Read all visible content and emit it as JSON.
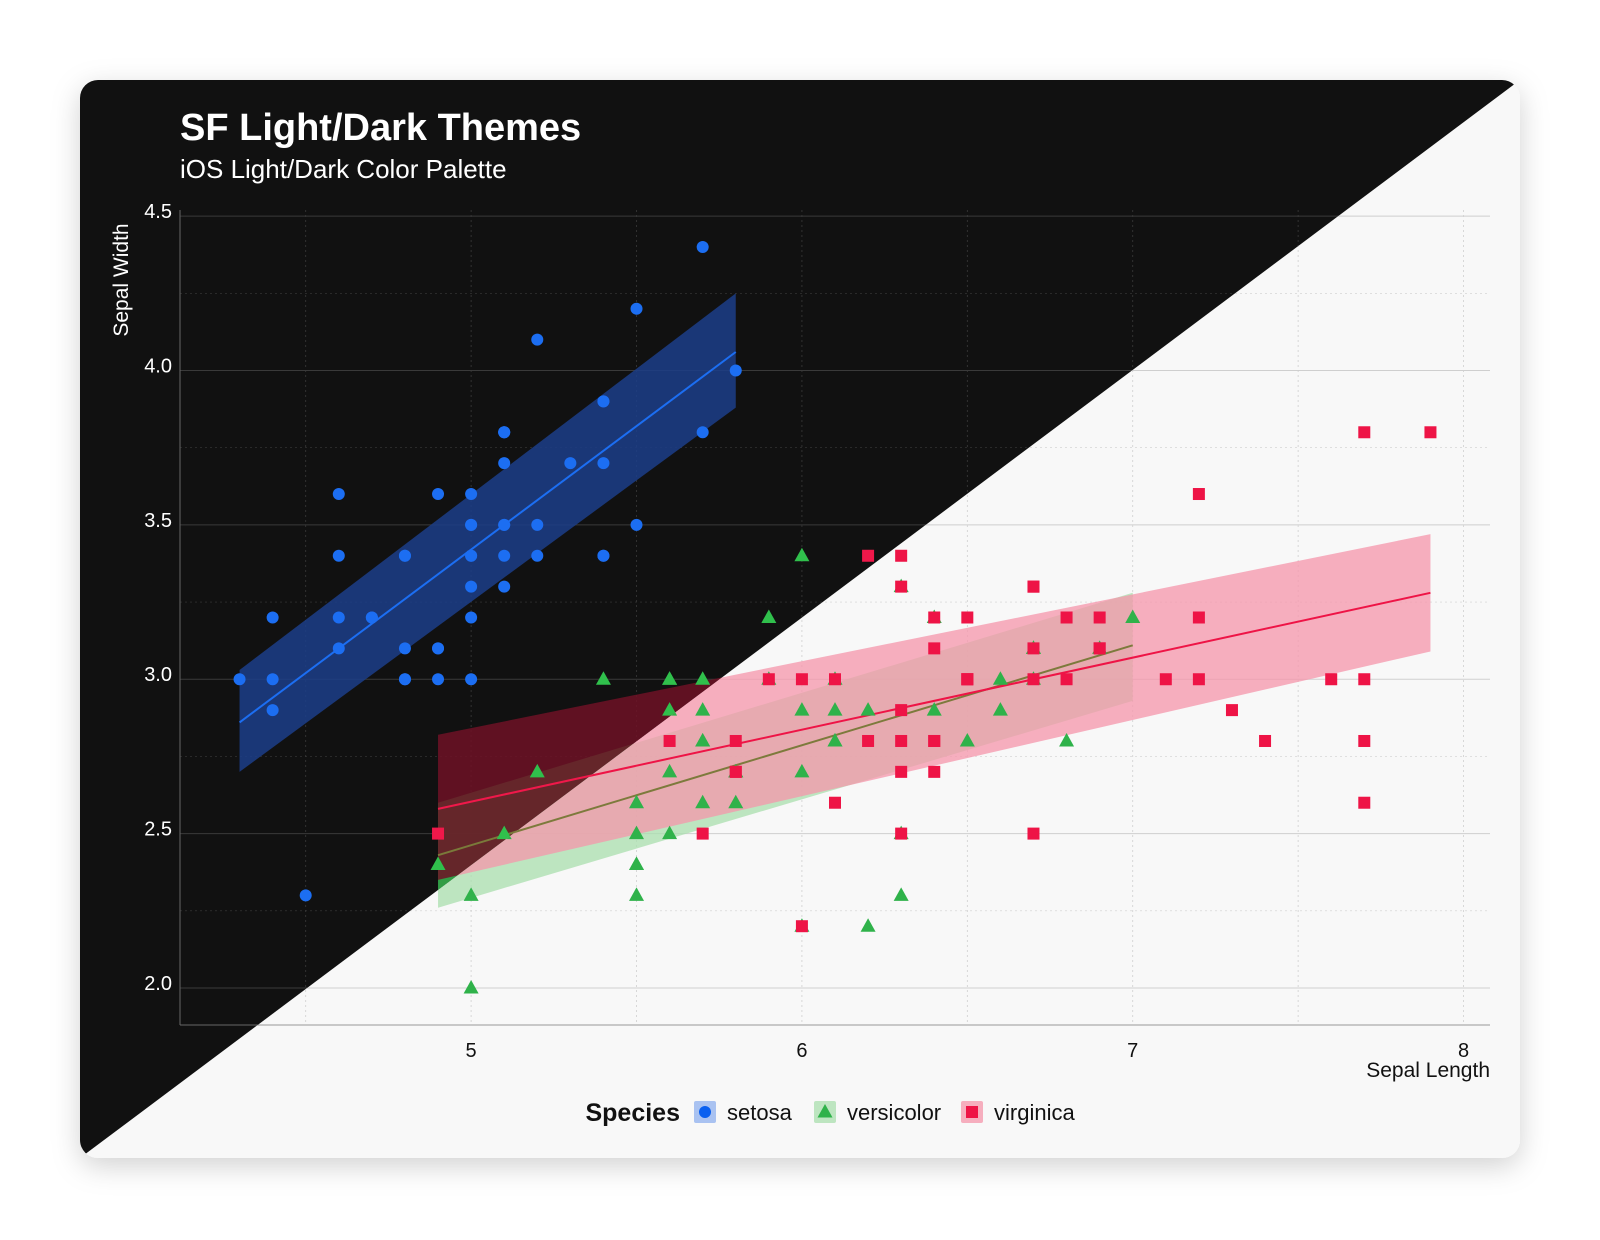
{
  "chart_data": {
    "type": "scatter",
    "title": "SF Light/Dark Themes",
    "subtitle": "iOS Light/Dark Color Palette",
    "xlabel": "Sepal Length",
    "ylabel": "Sepal Width",
    "xlim": [
      4.12,
      8.08
    ],
    "ylim": [
      1.88,
      4.52
    ],
    "x_ticks": [
      5,
      6,
      7,
      8
    ],
    "x_tick_labels": [
      "5",
      "6",
      "7",
      "8"
    ],
    "y_ticks": [
      2.0,
      2.5,
      3.0,
      3.5,
      4.0,
      4.5
    ],
    "y_tick_labels": [
      "2.0",
      "2.5",
      "3.0",
      "3.5",
      "4.0",
      "4.5"
    ],
    "grid": true,
    "legend": {
      "title": "Species",
      "position": "bottom"
    },
    "series": [
      {
        "name": "setosa",
        "marker": "circle",
        "color": "#1c6ef2",
        "color_light": "#0a60f0",
        "band_color": "#1c3e8a",
        "band_color_light": "#8fb0ef",
        "fit": {
          "x_start": 4.3,
          "x_end": 5.8,
          "y_start": 2.86,
          "y_end": 4.06,
          "band_start": [
            2.7,
            3.03
          ],
          "band_end": [
            3.88,
            4.25
          ]
        },
        "points": [
          [
            5.1,
            3.5
          ],
          [
            4.9,
            3.0
          ],
          [
            4.7,
            3.2
          ],
          [
            4.6,
            3.1
          ],
          [
            5.0,
            3.6
          ],
          [
            5.4,
            3.9
          ],
          [
            4.6,
            3.4
          ],
          [
            5.0,
            3.4
          ],
          [
            4.4,
            2.9
          ],
          [
            4.9,
            3.1
          ],
          [
            5.4,
            3.7
          ],
          [
            4.8,
            3.4
          ],
          [
            4.8,
            3.0
          ],
          [
            4.3,
            3.0
          ],
          [
            5.8,
            4.0
          ],
          [
            5.7,
            4.4
          ],
          [
            5.4,
            3.9
          ],
          [
            5.1,
            3.5
          ],
          [
            5.7,
            3.8
          ],
          [
            5.1,
            3.8
          ],
          [
            5.4,
            3.4
          ],
          [
            5.1,
            3.7
          ],
          [
            4.6,
            3.6
          ],
          [
            5.1,
            3.3
          ],
          [
            4.8,
            3.4
          ],
          [
            5.0,
            3.0
          ],
          [
            5.0,
            3.4
          ],
          [
            5.2,
            3.5
          ],
          [
            5.2,
            3.4
          ],
          [
            4.7,
            3.2
          ],
          [
            4.8,
            3.1
          ],
          [
            5.4,
            3.4
          ],
          [
            5.2,
            4.1
          ],
          [
            5.5,
            4.2
          ],
          [
            4.9,
            3.1
          ],
          [
            5.0,
            3.2
          ],
          [
            5.5,
            3.5
          ],
          [
            4.9,
            3.6
          ],
          [
            4.4,
            3.0
          ],
          [
            5.1,
            3.4
          ],
          [
            5.0,
            3.5
          ],
          [
            4.5,
            2.3
          ],
          [
            4.4,
            3.2
          ],
          [
            5.0,
            3.5
          ],
          [
            5.1,
            3.8
          ],
          [
            4.8,
            3.0
          ],
          [
            5.1,
            3.8
          ],
          [
            4.6,
            3.2
          ],
          [
            5.3,
            3.7
          ],
          [
            5.0,
            3.3
          ]
        ]
      },
      {
        "name": "versicolor",
        "marker": "triangle",
        "color": "#30c04c",
        "color_light": "#2fb24a",
        "band_color": "#37b64f",
        "band_color_light": "#a9dfae",
        "fit": {
          "x_start": 4.9,
          "x_end": 7.0,
          "y_start": 2.43,
          "y_end": 3.11,
          "band_start": [
            2.26,
            2.6
          ],
          "band_end": [
            2.93,
            3.28
          ]
        },
        "points": [
          [
            7.0,
            3.2
          ],
          [
            6.4,
            3.2
          ],
          [
            6.9,
            3.1
          ],
          [
            5.5,
            2.3
          ],
          [
            6.5,
            2.8
          ],
          [
            5.7,
            2.8
          ],
          [
            6.3,
            3.3
          ],
          [
            4.9,
            2.4
          ],
          [
            6.6,
            2.9
          ],
          [
            5.2,
            2.7
          ],
          [
            5.0,
            2.0
          ],
          [
            5.9,
            3.0
          ],
          [
            6.0,
            2.2
          ],
          [
            6.1,
            2.9
          ],
          [
            5.6,
            2.9
          ],
          [
            6.7,
            3.1
          ],
          [
            5.6,
            3.0
          ],
          [
            5.8,
            2.7
          ],
          [
            6.2,
            2.2
          ],
          [
            5.6,
            2.5
          ],
          [
            5.9,
            3.2
          ],
          [
            6.1,
            2.8
          ],
          [
            6.3,
            2.5
          ],
          [
            6.1,
            2.8
          ],
          [
            6.4,
            2.9
          ],
          [
            6.6,
            3.0
          ],
          [
            6.8,
            2.8
          ],
          [
            6.7,
            3.0
          ],
          [
            6.0,
            2.9
          ],
          [
            5.7,
            2.6
          ],
          [
            5.5,
            2.4
          ],
          [
            5.5,
            2.4
          ],
          [
            5.8,
            2.7
          ],
          [
            6.0,
            2.7
          ],
          [
            5.4,
            3.0
          ],
          [
            6.0,
            3.4
          ],
          [
            6.7,
            3.1
          ],
          [
            6.3,
            2.3
          ],
          [
            5.6,
            3.0
          ],
          [
            5.5,
            2.5
          ],
          [
            5.5,
            2.6
          ],
          [
            6.1,
            3.0
          ],
          [
            5.8,
            2.6
          ],
          [
            5.0,
            2.3
          ],
          [
            5.6,
            2.7
          ],
          [
            5.7,
            3.0
          ],
          [
            5.7,
            2.9
          ],
          [
            6.2,
            2.9
          ],
          [
            5.1,
            2.5
          ],
          [
            5.7,
            2.8
          ]
        ]
      },
      {
        "name": "virginica",
        "marker": "square",
        "color": "#f0184a",
        "color_light": "#ee1446",
        "band_color": "#6e1226",
        "band_color_light": "#f595ab",
        "fit": {
          "x_start": 4.9,
          "x_end": 7.9,
          "y_start": 2.58,
          "y_end": 3.28,
          "band_start": [
            2.35,
            2.82
          ],
          "band_end": [
            3.09,
            3.47
          ]
        },
        "points": [
          [
            6.3,
            3.3
          ],
          [
            5.8,
            2.7
          ],
          [
            7.1,
            3.0
          ],
          [
            6.3,
            2.9
          ],
          [
            6.5,
            3.0
          ],
          [
            7.6,
            3.0
          ],
          [
            4.9,
            2.5
          ],
          [
            7.3,
            2.9
          ],
          [
            6.7,
            2.5
          ],
          [
            7.2,
            3.6
          ],
          [
            6.5,
            3.2
          ],
          [
            6.4,
            2.7
          ],
          [
            6.8,
            3.0
          ],
          [
            5.7,
            2.5
          ],
          [
            5.8,
            2.8
          ],
          [
            6.4,
            3.2
          ],
          [
            6.5,
            3.0
          ],
          [
            7.7,
            3.8
          ],
          [
            7.7,
            2.6
          ],
          [
            6.0,
            2.2
          ],
          [
            6.9,
            3.2
          ],
          [
            5.6,
            2.8
          ],
          [
            7.7,
            2.8
          ],
          [
            6.3,
            2.7
          ],
          [
            6.7,
            3.3
          ],
          [
            7.2,
            3.2
          ],
          [
            6.2,
            2.8
          ],
          [
            6.1,
            3.0
          ],
          [
            6.4,
            2.8
          ],
          [
            7.2,
            3.0
          ],
          [
            7.4,
            2.8
          ],
          [
            7.9,
            3.8
          ],
          [
            6.4,
            2.8
          ],
          [
            6.3,
            2.8
          ],
          [
            6.1,
            2.6
          ],
          [
            7.7,
            3.0
          ],
          [
            6.3,
            3.4
          ],
          [
            6.4,
            3.1
          ],
          [
            6.0,
            3.0
          ],
          [
            6.9,
            3.1
          ],
          [
            6.7,
            3.1
          ],
          [
            6.9,
            3.1
          ],
          [
            5.8,
            2.7
          ],
          [
            6.8,
            3.2
          ],
          [
            6.7,
            3.3
          ],
          [
            6.7,
            3.0
          ],
          [
            6.3,
            2.5
          ],
          [
            6.5,
            3.0
          ],
          [
            6.2,
            3.4
          ],
          [
            5.9,
            3.0
          ]
        ]
      }
    ],
    "theme": {
      "dark_background": "#111111",
      "light_background": "#f8f8f8",
      "dark_text": "#ffffff",
      "light_text": "#111111",
      "dark_grid": "#3a3a3a",
      "light_grid": "#cfcfcf"
    }
  }
}
